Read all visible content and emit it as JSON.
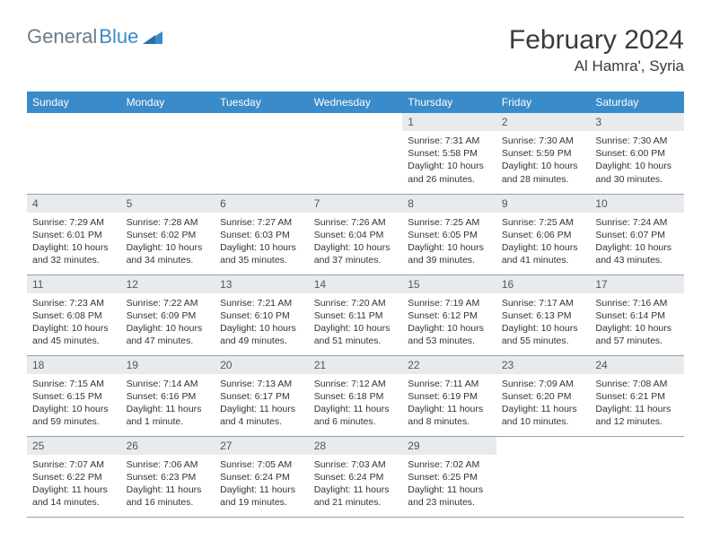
{
  "logo": {
    "text1": "General",
    "text2": "Blue"
  },
  "title": "February 2024",
  "location": "Al Hamra', Syria",
  "colors": {
    "header_bg": "#3a8bc9",
    "header_text": "#ffffff",
    "daynum_bg": "#e8eaec",
    "border": "#8fa3b5",
    "logo_grey": "#6b7c8c",
    "logo_blue": "#3a8bc9"
  },
  "weekdays": [
    "Sunday",
    "Monday",
    "Tuesday",
    "Wednesday",
    "Thursday",
    "Friday",
    "Saturday"
  ],
  "weeks": [
    [
      null,
      null,
      null,
      null,
      {
        "n": "1",
        "sr": "Sunrise: 7:31 AM",
        "ss": "Sunset: 5:58 PM",
        "dl": "Daylight: 10 hours and 26 minutes."
      },
      {
        "n": "2",
        "sr": "Sunrise: 7:30 AM",
        "ss": "Sunset: 5:59 PM",
        "dl": "Daylight: 10 hours and 28 minutes."
      },
      {
        "n": "3",
        "sr": "Sunrise: 7:30 AM",
        "ss": "Sunset: 6:00 PM",
        "dl": "Daylight: 10 hours and 30 minutes."
      }
    ],
    [
      {
        "n": "4",
        "sr": "Sunrise: 7:29 AM",
        "ss": "Sunset: 6:01 PM",
        "dl": "Daylight: 10 hours and 32 minutes."
      },
      {
        "n": "5",
        "sr": "Sunrise: 7:28 AM",
        "ss": "Sunset: 6:02 PM",
        "dl": "Daylight: 10 hours and 34 minutes."
      },
      {
        "n": "6",
        "sr": "Sunrise: 7:27 AM",
        "ss": "Sunset: 6:03 PM",
        "dl": "Daylight: 10 hours and 35 minutes."
      },
      {
        "n": "7",
        "sr": "Sunrise: 7:26 AM",
        "ss": "Sunset: 6:04 PM",
        "dl": "Daylight: 10 hours and 37 minutes."
      },
      {
        "n": "8",
        "sr": "Sunrise: 7:25 AM",
        "ss": "Sunset: 6:05 PM",
        "dl": "Daylight: 10 hours and 39 minutes."
      },
      {
        "n": "9",
        "sr": "Sunrise: 7:25 AM",
        "ss": "Sunset: 6:06 PM",
        "dl": "Daylight: 10 hours and 41 minutes."
      },
      {
        "n": "10",
        "sr": "Sunrise: 7:24 AM",
        "ss": "Sunset: 6:07 PM",
        "dl": "Daylight: 10 hours and 43 minutes."
      }
    ],
    [
      {
        "n": "11",
        "sr": "Sunrise: 7:23 AM",
        "ss": "Sunset: 6:08 PM",
        "dl": "Daylight: 10 hours and 45 minutes."
      },
      {
        "n": "12",
        "sr": "Sunrise: 7:22 AM",
        "ss": "Sunset: 6:09 PM",
        "dl": "Daylight: 10 hours and 47 minutes."
      },
      {
        "n": "13",
        "sr": "Sunrise: 7:21 AM",
        "ss": "Sunset: 6:10 PM",
        "dl": "Daylight: 10 hours and 49 minutes."
      },
      {
        "n": "14",
        "sr": "Sunrise: 7:20 AM",
        "ss": "Sunset: 6:11 PM",
        "dl": "Daylight: 10 hours and 51 minutes."
      },
      {
        "n": "15",
        "sr": "Sunrise: 7:19 AM",
        "ss": "Sunset: 6:12 PM",
        "dl": "Daylight: 10 hours and 53 minutes."
      },
      {
        "n": "16",
        "sr": "Sunrise: 7:17 AM",
        "ss": "Sunset: 6:13 PM",
        "dl": "Daylight: 10 hours and 55 minutes."
      },
      {
        "n": "17",
        "sr": "Sunrise: 7:16 AM",
        "ss": "Sunset: 6:14 PM",
        "dl": "Daylight: 10 hours and 57 minutes."
      }
    ],
    [
      {
        "n": "18",
        "sr": "Sunrise: 7:15 AM",
        "ss": "Sunset: 6:15 PM",
        "dl": "Daylight: 10 hours and 59 minutes."
      },
      {
        "n": "19",
        "sr": "Sunrise: 7:14 AM",
        "ss": "Sunset: 6:16 PM",
        "dl": "Daylight: 11 hours and 1 minute."
      },
      {
        "n": "20",
        "sr": "Sunrise: 7:13 AM",
        "ss": "Sunset: 6:17 PM",
        "dl": "Daylight: 11 hours and 4 minutes."
      },
      {
        "n": "21",
        "sr": "Sunrise: 7:12 AM",
        "ss": "Sunset: 6:18 PM",
        "dl": "Daylight: 11 hours and 6 minutes."
      },
      {
        "n": "22",
        "sr": "Sunrise: 7:11 AM",
        "ss": "Sunset: 6:19 PM",
        "dl": "Daylight: 11 hours and 8 minutes."
      },
      {
        "n": "23",
        "sr": "Sunrise: 7:09 AM",
        "ss": "Sunset: 6:20 PM",
        "dl": "Daylight: 11 hours and 10 minutes."
      },
      {
        "n": "24",
        "sr": "Sunrise: 7:08 AM",
        "ss": "Sunset: 6:21 PM",
        "dl": "Daylight: 11 hours and 12 minutes."
      }
    ],
    [
      {
        "n": "25",
        "sr": "Sunrise: 7:07 AM",
        "ss": "Sunset: 6:22 PM",
        "dl": "Daylight: 11 hours and 14 minutes."
      },
      {
        "n": "26",
        "sr": "Sunrise: 7:06 AM",
        "ss": "Sunset: 6:23 PM",
        "dl": "Daylight: 11 hours and 16 minutes."
      },
      {
        "n": "27",
        "sr": "Sunrise: 7:05 AM",
        "ss": "Sunset: 6:24 PM",
        "dl": "Daylight: 11 hours and 19 minutes."
      },
      {
        "n": "28",
        "sr": "Sunrise: 7:03 AM",
        "ss": "Sunset: 6:24 PM",
        "dl": "Daylight: 11 hours and 21 minutes."
      },
      {
        "n": "29",
        "sr": "Sunrise: 7:02 AM",
        "ss": "Sunset: 6:25 PM",
        "dl": "Daylight: 11 hours and 23 minutes."
      },
      null,
      null
    ]
  ]
}
